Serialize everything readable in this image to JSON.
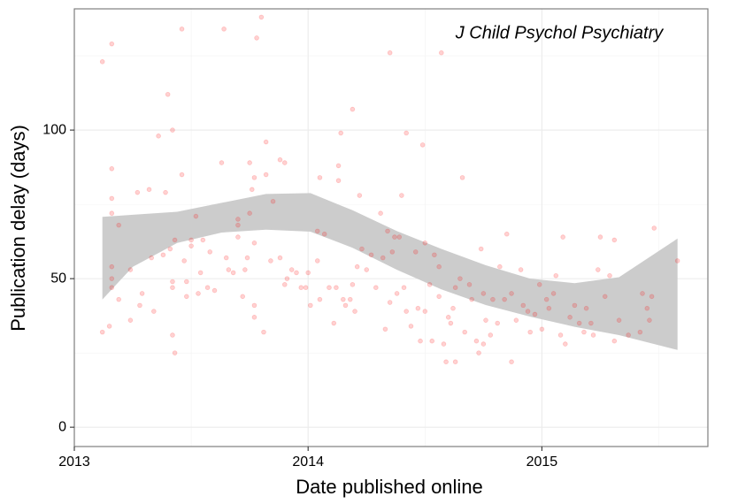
{
  "chart_data": {
    "type": "scatter",
    "annotation": "J Child Psychol Psychiatry",
    "xlabel": "Date published online",
    "ylabel": "Publication delay (days)",
    "xlim": [
      2013,
      2015.71
    ],
    "ylim": [
      -6.5,
      140.8
    ],
    "xticks": [
      2013,
      2014,
      2015
    ],
    "yticks": [
      0,
      50,
      100
    ],
    "x_minor_grid": [
      2013.5,
      2014.5,
      2015.5
    ],
    "y_minor_grid": [
      25,
      75,
      125
    ],
    "grid": true,
    "color": "#ff0000",
    "point_opacity": 0.18,
    "band_color": "#cccccc",
    "x": [
      2013.12,
      2013.16,
      2013.12,
      2013.15,
      2013.16,
      2013.16,
      2013.16,
      2013.16,
      2013.16,
      2013.16,
      2013.19,
      2013.19,
      2013.24,
      2013.24,
      2013.27,
      2013.28,
      2013.29,
      2013.32,
      2013.33,
      2013.34,
      2013.36,
      2013.38,
      2013.39,
      2013.4,
      2013.41,
      2013.42,
      2013.42,
      2013.42,
      2013.42,
      2013.43,
      2013.43,
      2013.46,
      2013.46,
      2013.47,
      2013.48,
      2013.48,
      2013.5,
      2013.5,
      2013.52,
      2013.53,
      2013.54,
      2013.55,
      2013.57,
      2013.58,
      2013.6,
      2013.63,
      2013.64,
      2013.65,
      2013.66,
      2013.68,
      2013.7,
      2013.7,
      2013.7,
      2013.72,
      2013.73,
      2013.74,
      2013.75,
      2013.75,
      2013.76,
      2013.77,
      2013.77,
      2013.77,
      2013.77,
      2013.78,
      2013.8,
      2013.81,
      2013.82,
      2013.82,
      2013.84,
      2013.85,
      2013.88,
      2013.88,
      2013.9,
      2013.9,
      2013.91,
      2013.93,
      2013.95,
      2013.97,
      2013.99,
      2014.0,
      2014.01,
      2014.04,
      2014.04,
      2014.05,
      2014.05,
      2014.07,
      2014.09,
      2014.11,
      2014.12,
      2014.13,
      2014.13,
      2014.14,
      2014.15,
      2014.16,
      2014.18,
      2014.19,
      2014.19,
      2014.2,
      2014.21,
      2014.22,
      2014.23,
      2014.25,
      2014.27,
      2014.29,
      2014.31,
      2014.32,
      2014.33,
      2014.34,
      2014.35,
      2014.35,
      2014.36,
      2014.37,
      2014.38,
      2014.39,
      2014.4,
      2014.41,
      2014.42,
      2014.42,
      2014.44,
      2014.46,
      2014.47,
      2014.48,
      2014.49,
      2014.5,
      2014.5,
      2014.52,
      2014.53,
      2014.54,
      2014.56,
      2014.56,
      2014.57,
      2014.58,
      2014.59,
      2014.6,
      2014.61,
      2014.62,
      2014.63,
      2014.63,
      2014.65,
      2014.66,
      2014.67,
      2014.69,
      2014.7,
      2014.72,
      2014.73,
      2014.74,
      2014.75,
      2014.75,
      2014.76,
      2014.78,
      2014.79,
      2014.81,
      2014.82,
      2014.84,
      2014.85,
      2014.87,
      2014.87,
      2014.89,
      2014.91,
      2014.92,
      2014.94,
      2014.95,
      2014.97,
      2014.99,
      2015.0,
      2015.02,
      2015.03,
      2015.05,
      2015.06,
      2015.08,
      2015.09,
      2015.1,
      2015.12,
      2015.14,
      2015.16,
      2015.18,
      2015.19,
      2015.21,
      2015.22,
      2015.24,
      2015.25,
      2015.27,
      2015.29,
      2015.31,
      2015.31,
      2015.33,
      2015.37,
      2015.42,
      2015.43,
      2015.45,
      2015.46,
      2015.47,
      2015.48,
      2015.58
    ],
    "values": [
      123,
      129,
      32,
      34,
      72,
      77,
      87,
      54,
      47,
      50,
      68,
      43,
      53,
      36,
      79,
      41,
      45,
      80,
      57,
      39,
      98,
      58,
      79,
      112,
      60,
      47,
      100,
      49,
      31,
      25,
      63,
      134,
      85,
      56,
      49,
      44,
      63,
      61,
      71,
      45,
      52,
      63,
      47,
      59,
      46,
      89,
      134,
      57,
      53,
      52,
      64,
      68,
      70,
      44,
      53,
      57,
      72,
      89,
      80,
      84,
      62,
      37,
      41,
      131,
      138,
      32,
      96,
      85,
      56,
      76,
      90,
      57,
      89,
      48,
      50,
      53,
      52,
      47,
      47,
      52,
      41,
      66,
      56,
      84,
      43,
      65,
      47,
      35,
      47,
      83,
      88,
      99,
      43,
      41,
      43,
      107,
      48,
      39,
      54,
      78,
      60,
      53,
      58,
      47,
      72,
      57,
      33,
      66,
      42,
      126,
      59,
      64,
      45,
      64,
      78,
      47,
      99,
      39,
      34,
      59,
      40,
      29,
      95,
      39,
      62,
      48,
      29,
      58,
      54,
      44,
      126,
      28,
      22,
      37,
      35,
      40,
      22,
      47,
      50,
      84,
      32,
      48,
      43,
      29,
      25,
      60,
      45,
      28,
      36,
      31,
      43,
      35,
      54,
      43,
      65,
      45,
      22,
      36,
      53,
      41,
      39,
      32,
      38,
      48,
      33,
      43,
      40,
      45,
      51,
      31,
      64,
      28,
      37,
      41,
      35,
      32,
      40,
      35,
      31,
      53,
      64,
      44,
      51,
      63,
      29,
      36,
      31,
      32,
      45,
      40,
      36,
      44,
      67,
      56
    ],
    "band": {
      "x": [
        2013.12,
        2013.25,
        2013.44,
        2013.63,
        2013.82,
        2014.01,
        2014.19,
        2014.38,
        2014.57,
        2014.76,
        2014.95,
        2015.14,
        2015.33,
        2015.58
      ],
      "upper": [
        70.8,
        71.5,
        72.5,
        75.5,
        78.5,
        78.8,
        73,
        66,
        60,
        54.5,
        50,
        48.5,
        50.5,
        63.5
      ],
      "lower": [
        43,
        54,
        62,
        65.5,
        66.5,
        65.8,
        60.4,
        53,
        46.4,
        41.1,
        37.2,
        33.8,
        31,
        26
      ]
    }
  }
}
